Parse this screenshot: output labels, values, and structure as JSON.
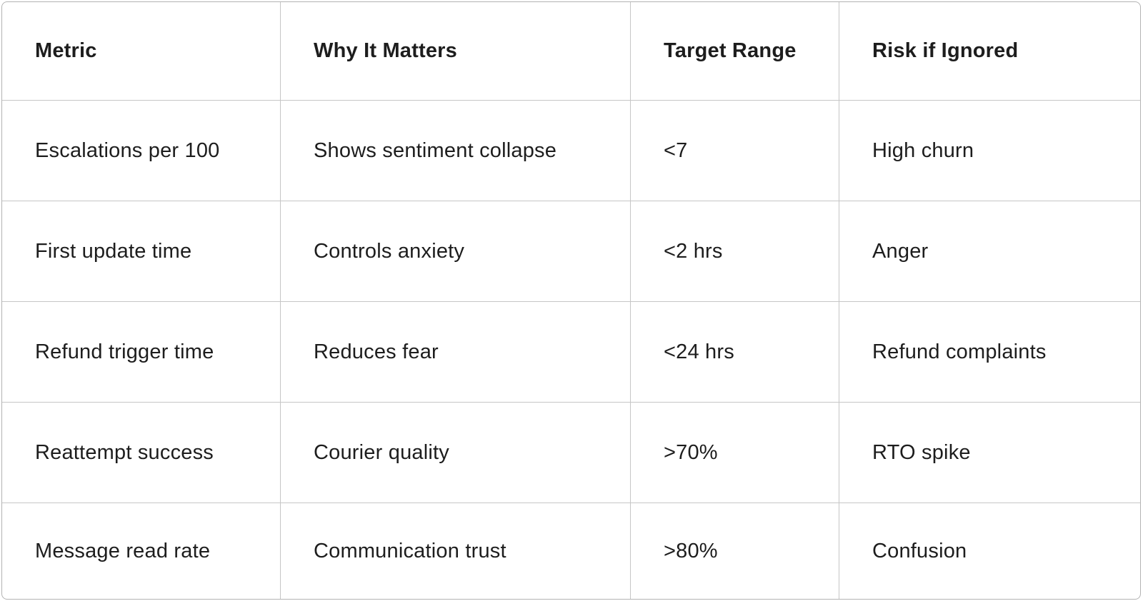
{
  "table": {
    "columns": [
      {
        "label": "Metric"
      },
      {
        "label": "Why It Matters"
      },
      {
        "label": "Target Range"
      },
      {
        "label": "Risk if Ignored"
      }
    ],
    "rows": [
      {
        "cells": [
          "Escalations per 100",
          "Shows sentiment collapse",
          "<7",
          "High churn"
        ]
      },
      {
        "cells": [
          "First update time",
          "Controls anxiety",
          "<2 hrs",
          "Anger"
        ]
      },
      {
        "cells": [
          "Refund trigger time",
          "Reduces fear",
          "<24 hrs",
          "Refund complaints"
        ]
      },
      {
        "cells": [
          "Reattempt success",
          "Courier quality",
          ">70%",
          "RTO spike"
        ]
      },
      {
        "cells": [
          "Message read rate",
          "Communication trust",
          ">80%",
          "Confusion"
        ]
      }
    ]
  },
  "colors": {
    "grid_line": "#c6c6c6",
    "outer_border": "#b3b3b3",
    "text": "#1d1d1d",
    "background": "#ffffff"
  }
}
